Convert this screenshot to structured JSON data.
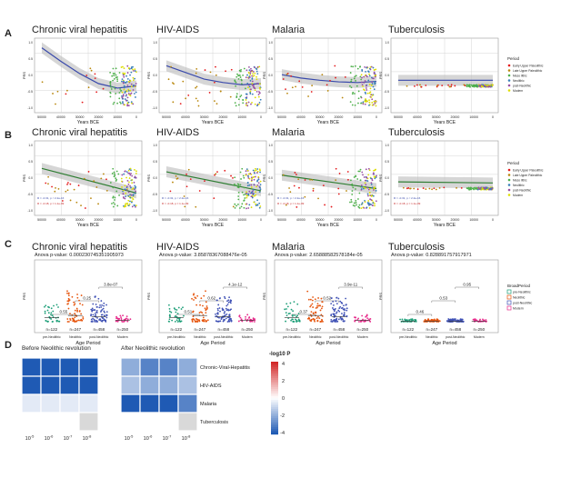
{
  "panel_letters": [
    "A",
    "B",
    "C",
    "D"
  ],
  "diseases": [
    "Chronic viral hepatitis",
    "HIV-AIDS",
    "Malaria",
    "Tuberculosis"
  ],
  "years_ticks": [
    "50000",
    "40000",
    "30000",
    "20000",
    "10000",
    "0"
  ],
  "years_label": "Years BCE",
  "y_axis_label": "PRS",
  "period_legend": {
    "title": "Period",
    "items": [
      {
        "label": "Early Upper Paleolithic",
        "color": "#e41a1c"
      },
      {
        "label": "Late Upper Paleolithic",
        "color": "#b8860b"
      },
      {
        "label": "Meso lithic",
        "color": "#4daf4a"
      },
      {
        "label": "Neolithic",
        "color": "#377eb8"
      },
      {
        "label": "post-Neolithic",
        "color": "#984ea3"
      },
      {
        "label": "Modern",
        "color": "#dddd00"
      }
    ]
  },
  "broad_legend": {
    "title": "BroadPeriod",
    "items": [
      {
        "label": "pre-Neolithic",
        "color": "#1b9e77"
      },
      {
        "label": "Neolithic",
        "color": "#e6550d"
      },
      {
        "label": "post-Neolithic",
        "color": "#3f51b5"
      },
      {
        "label": "Modern",
        "color": "#e7298a"
      }
    ]
  },
  "panel_c": {
    "xlabel": "Age Period",
    "categories": [
      "pre-Neolithic",
      "Neolithic",
      "post-Neolithic",
      "Modern"
    ],
    "counts": [
      "n=122",
      "n=247",
      "n=458",
      "n=250"
    ],
    "anova": [
      "Anova p-value: 0.000230745351905973",
      "Anova p-value: 3.85878367088476e-05",
      "Anova p-value: 2.65888582578184e-05",
      "Anova p-value: 0.828891757917971"
    ],
    "pvals": [
      [
        "0.55",
        "0.25",
        "3.8e-07"
      ],
      [
        "0.51",
        "0.62",
        "4.1e-12"
      ],
      [
        "0.37",
        "0.52",
        "3.9e-11"
      ],
      [
        "0.46",
        "0.53",
        "0.95"
      ]
    ]
  },
  "panel_d": {
    "left_title": "Before Neolithic revolution",
    "right_title": "After Neolithic revolution",
    "legend_title": "-log10 P",
    "legend_ticks": [
      "4",
      "2",
      "0",
      "-2",
      "-4"
    ],
    "rows": [
      "Chronic-Viral-Hepatitis",
      "HIV-AIDS",
      "Malaria",
      "Tuberculosis"
    ],
    "columns": [
      "10-5",
      "10-6",
      "10-7",
      "10-8"
    ]
  },
  "chart_data": [
    {
      "type": "scatter",
      "panel": "A",
      "xlabel": "Years BCE",
      "ylabel": "PRS",
      "series": [
        {
          "name": "Chronic viral hepatitis",
          "smooth": [
            [
              50000,
              1.4
            ],
            [
              40000,
              0.8
            ],
            [
              30000,
              0.25
            ],
            [
              20000,
              -0.2
            ],
            [
              10000,
              -0.4
            ],
            [
              0,
              -0.3
            ]
          ]
        },
        {
          "name": "HIV-AIDS",
          "smooth": [
            [
              50000,
              0.6
            ],
            [
              40000,
              0.3
            ],
            [
              30000,
              0.0
            ],
            [
              20000,
              -0.15
            ],
            [
              10000,
              -0.25
            ],
            [
              0,
              -0.2
            ]
          ]
        },
        {
          "name": "Malaria",
          "smooth": [
            [
              50000,
              0.2
            ],
            [
              40000,
              0.05
            ],
            [
              30000,
              -0.05
            ],
            [
              20000,
              -0.12
            ],
            [
              10000,
              -0.15
            ],
            [
              0,
              -0.1
            ]
          ]
        },
        {
          "name": "Tuberculosis",
          "smooth": [
            [
              50000,
              -0.05
            ],
            [
              40000,
              -0.05
            ],
            [
              30000,
              -0.05
            ],
            [
              20000,
              -0.05
            ],
            [
              10000,
              -0.05
            ],
            [
              0,
              -0.05
            ]
          ]
        }
      ]
    },
    {
      "type": "scatter",
      "panel": "B",
      "xlabel": "Years BCE",
      "ylabel": "PRS",
      "series": [
        {
          "name": "Chronic viral hepatitis",
          "linear": [
            [
              50000,
              0.6
            ],
            [
              0,
              -0.5
            ]
          ]
        },
        {
          "name": "HIV-AIDS",
          "linear": [
            [
              50000,
              0.45
            ],
            [
              0,
              -0.4
            ]
          ]
        },
        {
          "name": "Malaria",
          "linear": [
            [
              50000,
              0.3
            ],
            [
              0,
              -0.3
            ]
          ]
        },
        {
          "name": "Tuberculosis",
          "linear": [
            [
              50000,
              0.0
            ],
            [
              0,
              -0.05
            ]
          ]
        }
      ]
    },
    {
      "type": "scatter",
      "panel": "C",
      "xlabel": "Age Period",
      "ylabel": "PRS",
      "categories": [
        "pre-Neolithic",
        "Neolithic",
        "post-Neolithic",
        "Modern"
      ]
    },
    {
      "type": "heatmap",
      "panel": "D",
      "rows": [
        "Chronic-Viral-Hepatitis",
        "HIV-AIDS",
        "Malaria",
        "Tuberculosis"
      ],
      "columns": [
        "10-5",
        "10-6",
        "10-7",
        "10-8"
      ],
      "before": [
        [
          -4,
          -4,
          -4,
          -4
        ],
        [
          -4,
          -4,
          -4,
          -4
        ],
        [
          -0.5,
          -0.5,
          -0.5,
          -0.5
        ],
        [
          0,
          0,
          0,
          null
        ]
      ],
      "after": [
        [
          -2,
          -3,
          -3,
          -2
        ],
        [
          -1.5,
          -2,
          -2,
          -1.5
        ],
        [
          -4,
          -4,
          -4,
          -3
        ],
        [
          0,
          0,
          0,
          null
        ]
      ],
      "range": [
        -4,
        4
      ]
    }
  ]
}
